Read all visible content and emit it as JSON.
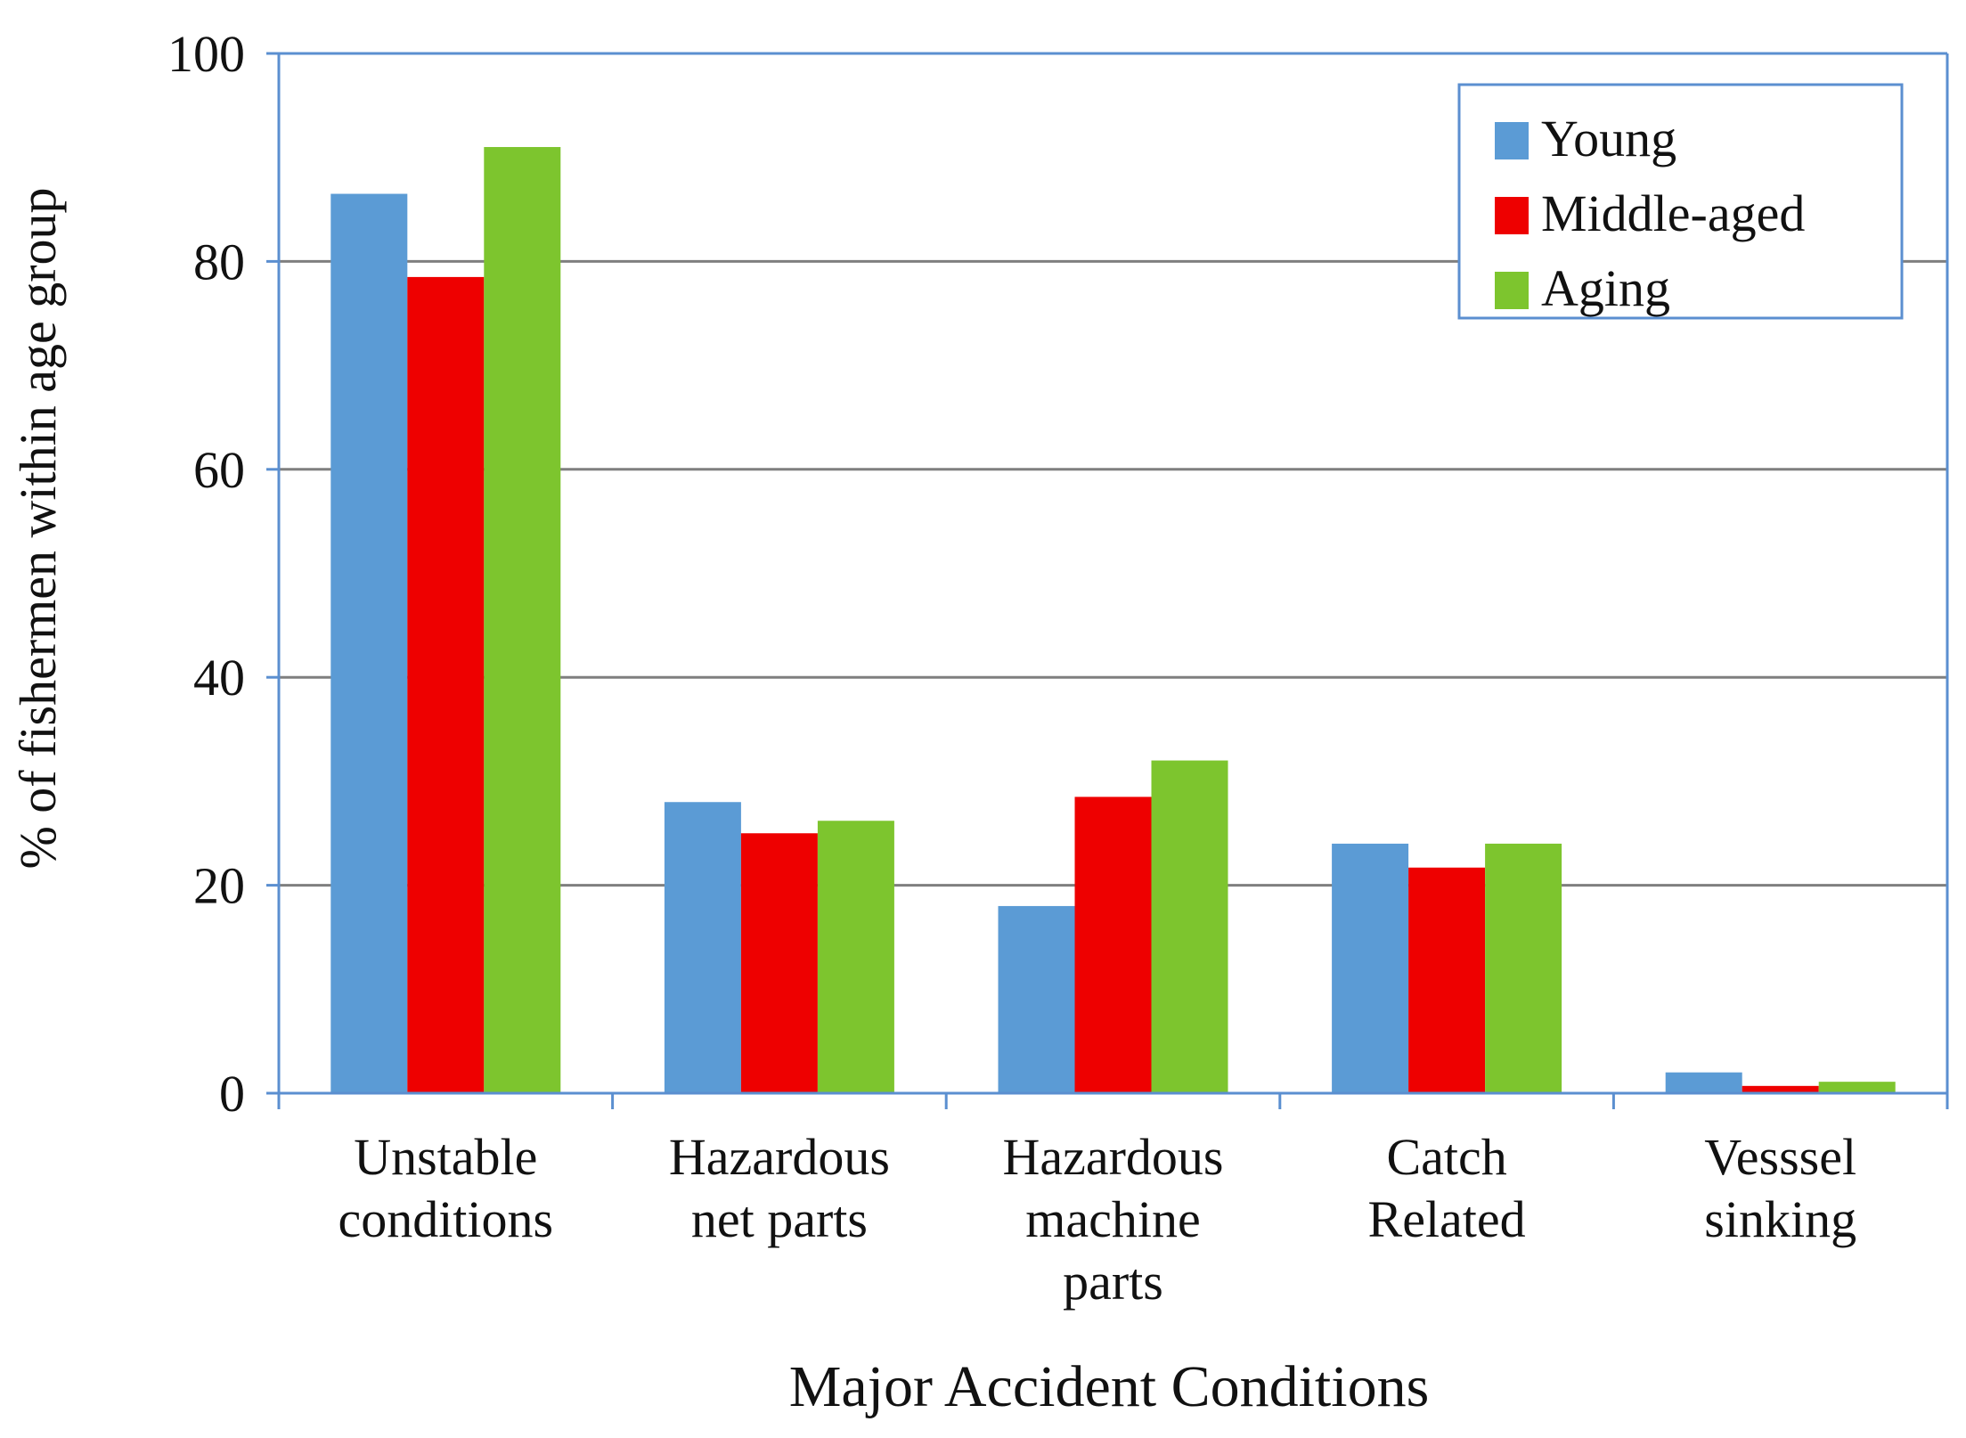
{
  "chart_data": {
    "type": "bar",
    "title": "",
    "xlabel": "Major Accident Conditions",
    "ylabel": "% of fishermen within age group",
    "ylim": [
      0,
      100
    ],
    "yticks": [
      "0",
      "20",
      "40",
      "60",
      "80",
      "100"
    ],
    "ytick_values": [
      0,
      20,
      40,
      60,
      80,
      100
    ],
    "grid": true,
    "legend_position": "top-right",
    "categories": [
      {
        "lines": [
          "Unstable",
          "conditions"
        ]
      },
      {
        "lines": [
          "Hazardous",
          "net parts"
        ]
      },
      {
        "lines": [
          "Hazardous",
          "machine",
          "parts"
        ]
      },
      {
        "lines": [
          "Catch",
          "Related"
        ]
      },
      {
        "lines": [
          "Vesssel",
          "sinking"
        ]
      }
    ],
    "series": [
      {
        "name": "Young",
        "color": "#5B9BD5",
        "values": [
          86.5,
          28,
          18,
          24,
          2
        ]
      },
      {
        "name": "Middle-aged",
        "color": "#EE0000",
        "values": [
          78.5,
          25,
          28.5,
          21.7,
          0.7
        ]
      },
      {
        "name": "Aging",
        "color": "#7DC52E",
        "values": [
          91,
          26.2,
          32,
          24,
          1.1
        ]
      }
    ],
    "colors": {
      "axis": "#5B8FD0",
      "grid": "#7F7F7F",
      "text": "#111111"
    }
  }
}
